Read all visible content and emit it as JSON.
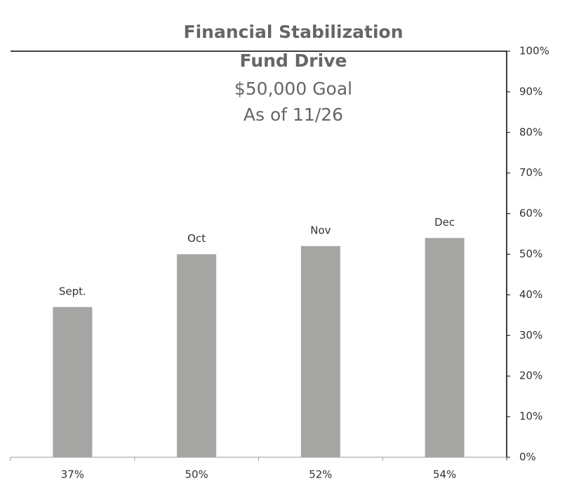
{
  "chart_data": {
    "type": "bar",
    "title": [
      "Financial Stabilization",
      "Fund Drive"
    ],
    "subtitle": [
      "$50,000 Goal",
      "As of 11/26"
    ],
    "categories": [
      "Sept.",
      "Oct",
      "Nov",
      "Dec"
    ],
    "values": [
      37,
      50,
      52,
      54
    ],
    "value_labels": [
      "37%",
      "50%",
      "52%",
      "54%"
    ],
    "color": "#a5a5a3",
    "ylim": [
      0,
      100
    ],
    "yticks": [
      {
        "value": 0,
        "label": "0%"
      },
      {
        "value": 10,
        "label": "10%"
      },
      {
        "value": 20,
        "label": "20%"
      },
      {
        "value": 30,
        "label": "30%"
      },
      {
        "value": 40,
        "label": "40%"
      },
      {
        "value": 50,
        "label": "50%"
      },
      {
        "value": 60,
        "label": "60%"
      },
      {
        "value": 70,
        "label": "70%"
      },
      {
        "value": 80,
        "label": "80%"
      },
      {
        "value": 90,
        "label": "90%"
      },
      {
        "value": 100,
        "label": "100%"
      }
    ],
    "grid": false
  }
}
